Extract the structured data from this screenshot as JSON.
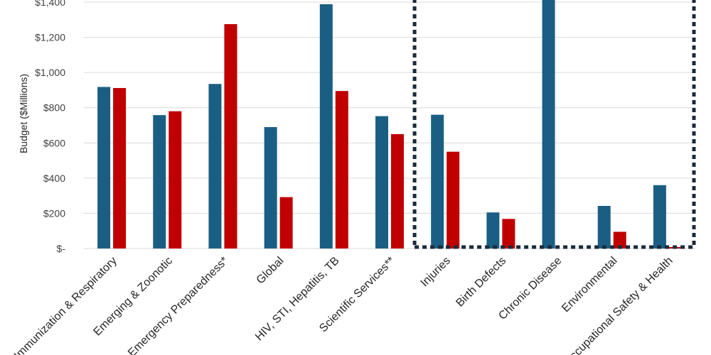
{
  "chart_data": {
    "type": "bar",
    "title": "",
    "xlabel": "",
    "ylabel": "Budget ($Millions)",
    "ylim": [
      0,
      1400
    ],
    "y_ticks": [
      0,
      200,
      400,
      600,
      800,
      1000,
      1200,
      1400
    ],
    "y_tick_labels": [
      "$-",
      "$200",
      "$400",
      "$600",
      "$800",
      "$1,000",
      "$1,200",
      "$1,400"
    ],
    "grid": true,
    "legend": "none",
    "categories": [
      "Immunization & Respiratory",
      "Emerging & Zoonotic",
      "Emergency Preparedness*",
      "Global",
      "HIV, STI, Hepatitis, TB",
      "Scientific Services**",
      "Injuries",
      "Birth Defects",
      "Chronic Disease",
      "Environmental",
      "Occupational Safety & Health"
    ],
    "series": [
      {
        "values": [
          918,
          758,
          935,
          690,
          1388,
          752,
          760,
          205,
          1420,
          242,
          360
        ]
      },
      {
        "values": [
          912,
          780,
          1275,
          292,
          895,
          650,
          550,
          168,
          0,
          95,
          8
        ]
      }
    ],
    "colors": [
      "#1b5e83",
      "#c00000"
    ],
    "highlight_box": {
      "from_category": 6,
      "to_category": 10,
      "style": "dotted",
      "color": "#1c2a3a"
    }
  }
}
